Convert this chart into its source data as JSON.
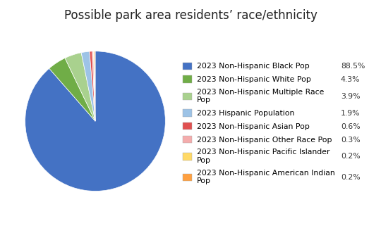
{
  "title": "Possible park area residents’ race/ethnicity",
  "legend_labels": [
    "2023 Non-Hispanic Black Pop",
    "2023 Non-Hispanic White Pop",
    "2023 Non-Hispanic Multiple Race\nPop",
    "2023 Hispanic Population",
    "2023 Non-Hispanic Asian Pop",
    "2023 Non-Hispanic Other Race Pop",
    "2023 Non-Hispanic Pacific Islander\nPop",
    "2023 Non-Hispanic American Indian\nPop"
  ],
  "values": [
    88.5,
    4.3,
    3.9,
    1.9,
    0.6,
    0.3,
    0.2,
    0.2
  ],
  "pct_labels": [
    "88.5%",
    "4.3%",
    "3.9%",
    "1.9%",
    "0.6%",
    "0.3%",
    "0.2%",
    "0.2%"
  ],
  "colors": [
    "#4472C4",
    "#70AD47",
    "#A9D18E",
    "#9DC3E6",
    "#E05050",
    "#F4ACAC",
    "#FFD966",
    "#FFA040"
  ],
  "background_color": "#FFFFFF",
  "title_fontsize": 12,
  "legend_fontsize": 7.8
}
